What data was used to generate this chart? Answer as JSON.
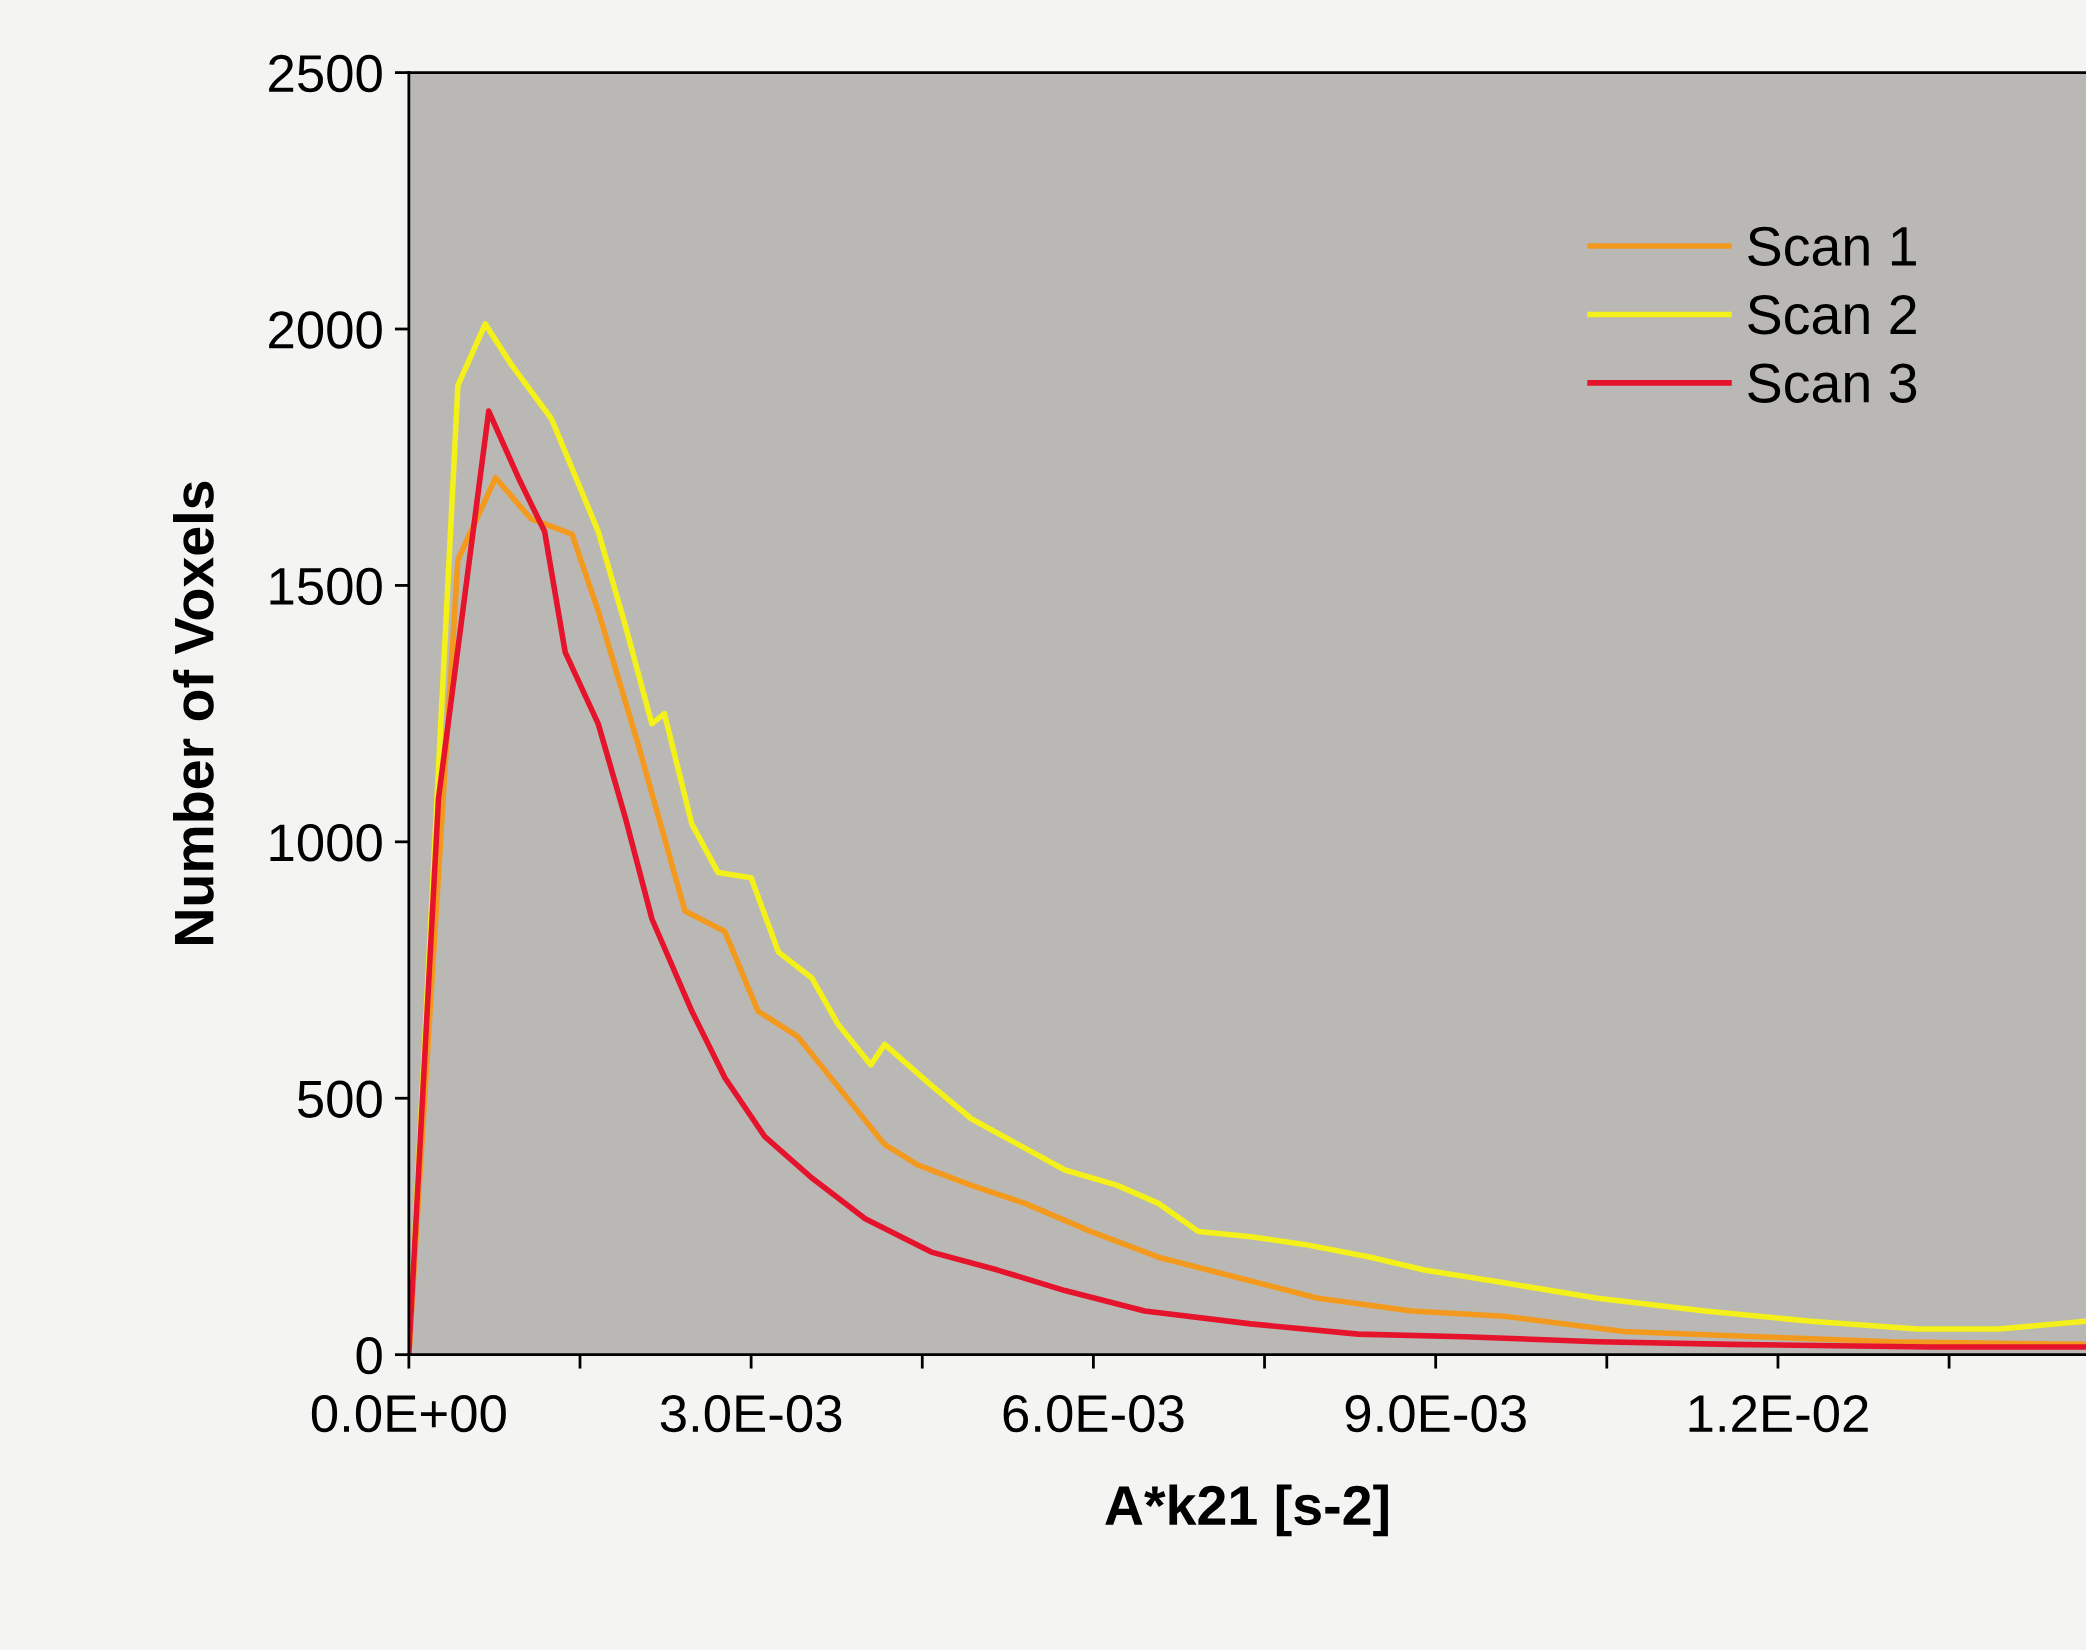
{
  "chart_data": {
    "type": "line",
    "xlabel": "A*k21 [s-2]",
    "ylabel": "Number of Voxels",
    "xlim": [
      0,
      0.0147
    ],
    "ylim": [
      0,
      2500
    ],
    "xticks": [
      {
        "value": 0,
        "label": "0.0E+00"
      },
      {
        "value": 0.0015,
        "label": null
      },
      {
        "value": 0.003,
        "label": "3.0E-03"
      },
      {
        "value": 0.0045,
        "label": null
      },
      {
        "value": 0.006,
        "label": "6.0E-03"
      },
      {
        "value": 0.0075,
        "label": null
      },
      {
        "value": 0.009,
        "label": "9.0E-03"
      },
      {
        "value": 0.0105,
        "label": null
      },
      {
        "value": 0.012,
        "label": "1.2E-02"
      },
      {
        "value": 0.0135,
        "label": null
      }
    ],
    "yticks": [
      0,
      500,
      1000,
      1500,
      2000,
      2500
    ],
    "grid": false,
    "legend": "top right",
    "marker": "none",
    "line_style": "solid",
    "series": [
      {
        "name": "Scan 1",
        "color": "#f39a1e",
        "x": [
          0,
          0.00043,
          0.00076,
          0.00107,
          0.00143,
          0.00166,
          0.00201,
          0.00242,
          0.00277,
          0.00306,
          0.00341,
          0.00388,
          0.00417,
          0.00446,
          0.00493,
          0.0054,
          0.00598,
          0.00657,
          0.00727,
          0.00797,
          0.00879,
          0.0096,
          0.01065,
          0.01182,
          0.01299,
          0.0147
        ],
        "values": [
          0,
          1550,
          1710,
          1630,
          1600,
          1450,
          1190,
          865,
          825,
          670,
          620,
          490,
          410,
          370,
          330,
          295,
          240,
          190,
          150,
          110,
          85,
          75,
          45,
          35,
          25,
          20
        ]
      },
      {
        "name": "Scan 2",
        "color": "#f4f01a",
        "x": [
          0,
          0.00043,
          0.00067,
          0.0009,
          0.00125,
          0.00166,
          0.0019,
          0.00213,
          0.00224,
          0.00248,
          0.00271,
          0.003,
          0.00324,
          0.00353,
          0.00376,
          0.00405,
          0.00417,
          0.00458,
          0.00493,
          0.00534,
          0.00575,
          0.00621,
          0.00657,
          0.00692,
          0.00738,
          0.00785,
          0.00843,
          0.0089,
          0.0096,
          0.01042,
          0.01136,
          0.01229,
          0.01322,
          0.01393,
          0.0147
        ],
        "values": [
          0,
          1890,
          2010,
          1930,
          1825,
          1605,
          1420,
          1230,
          1250,
          1035,
          940,
          930,
          785,
          735,
          645,
          565,
          605,
          525,
          460,
          410,
          360,
          330,
          295,
          240,
          230,
          215,
          190,
          165,
          140,
          110,
          85,
          65,
          50,
          50,
          65
        ]
      },
      {
        "name": "Scan 3",
        "color": "#e5132b",
        "x": [
          0,
          0.00026,
          0.0007,
          0.00096,
          0.00119,
          0.00137,
          0.00166,
          0.0019,
          0.00213,
          0.00248,
          0.00277,
          0.00312,
          0.00353,
          0.004,
          0.00458,
          0.00516,
          0.00575,
          0.00645,
          0.00738,
          0.00832,
          0.00925,
          0.01042,
          0.01159,
          0.01334,
          0.0147
        ],
        "values": [
          0,
          1085,
          1840,
          1710,
          1605,
          1370,
          1230,
          1045,
          850,
          670,
          540,
          425,
          345,
          265,
          200,
          165,
          125,
          85,
          60,
          40,
          35,
          25,
          20,
          15,
          15
        ]
      }
    ]
  }
}
